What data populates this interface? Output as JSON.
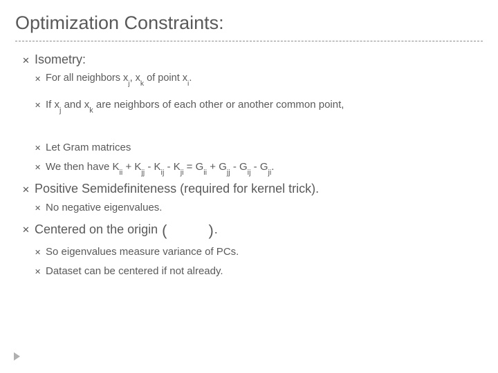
{
  "colors": {
    "text": "#595959",
    "divider": "#8a8a8a",
    "corner_arrow": "#b0b0b0",
    "background": "#ffffff"
  },
  "typography": {
    "title_fontsize": 27,
    "lvl1_fontsize": 18,
    "lvl2_fontsize": 15,
    "font_family": "Arial"
  },
  "title": "Optimization Constraints:",
  "items": [
    {
      "label": "Isometry:",
      "children": [
        {
          "text_html": "For all neighbors x<sub>j</sub>, x<sub>k</sub> of point x<sub>i</sub>."
        },
        {
          "text_html": "If x<sub>j</sub> and x<sub>k</sub> are neighbors of each other or another common point,"
        },
        {
          "text_html": "Let Gram matrices"
        },
        {
          "text_html": "We then have K<sub>ii</sub> + K<sub>jj</sub> - K<sub>ij</sub> - K<sub>ji</sub> = G<sub>ii</sub> + G<sub>jj</sub> - G<sub>ij</sub> - G<sub>ji</sub>."
        }
      ]
    },
    {
      "label": "Positive Semidefiniteness (required for kernel trick).",
      "children": [
        {
          "text_html": "No negative eigenvalues."
        }
      ]
    },
    {
      "label_prefix": "Centered on the origin",
      "label_suffix": ".",
      "children": [
        {
          "text_html": "So eigenvalues measure variance of PCs."
        },
        {
          "text_html": "Dataset can be centered if not already."
        }
      ]
    }
  ]
}
